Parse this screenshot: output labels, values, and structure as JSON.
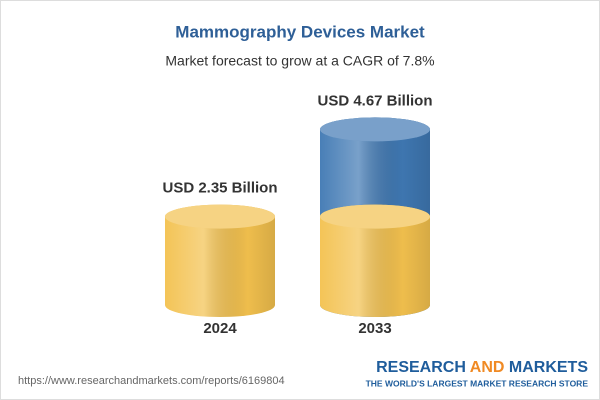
{
  "chart_data": {
    "type": "cylinder",
    "title": "Mammography Devices Market",
    "subtitle": "Market forecast to grow at a CAGR of 7.8%",
    "categories": [
      "2024",
      "2033"
    ],
    "values": [
      2.35,
      4.67
    ],
    "value_labels": [
      "USD 2.35 Billion",
      "USD 4.67 Billion"
    ],
    "colors": [
      "#f3c14e",
      "#3f78b3"
    ]
  },
  "footer": {
    "url": "https://www.researchandmarkets.com/reports/6169804",
    "brand": [
      "RESEARCH",
      "AND",
      "MARKETS"
    ],
    "tagline": "THE WORLD'S LARGEST MARKET RESEARCH STORE"
  }
}
